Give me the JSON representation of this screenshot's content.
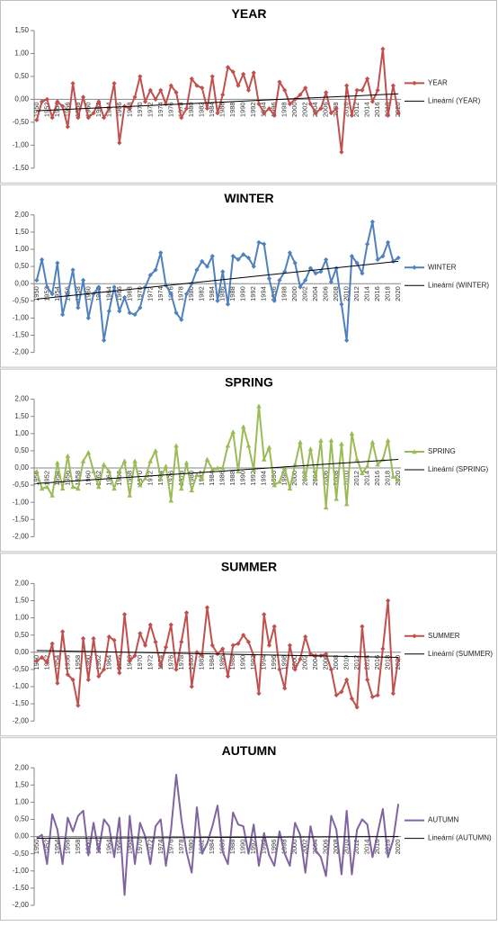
{
  "chart_data": [
    {
      "type": "line",
      "title": "YEAR",
      "marker": "diamond",
      "categories": [
        "1950",
        null,
        "1952",
        null,
        "1954",
        null,
        "1956",
        null,
        "1958",
        null,
        "1960",
        null,
        "1962",
        null,
        "1964",
        null,
        "1966",
        null,
        "1968",
        null,
        "1970",
        null,
        "1972",
        null,
        "1974",
        null,
        "1976",
        null,
        "1978",
        null,
        "1980",
        null,
        "1982",
        null,
        "1984",
        null,
        "1986",
        null,
        "1988",
        null,
        "1990",
        null,
        "1992",
        null,
        "1994",
        null,
        "1996",
        null,
        "1998",
        null,
        "2000",
        null,
        "2002",
        null,
        "2004",
        null,
        "2006",
        null,
        "2008",
        null,
        "2010",
        null,
        "2012",
        null,
        "2014",
        null,
        "2016",
        null,
        "2018",
        null,
        "2020"
      ],
      "series": [
        {
          "name": "YEAR",
          "color": "#c0504d",
          "values": [
            -0.45,
            -0.05,
            0.0,
            -0.4,
            -0.05,
            -0.15,
            -0.6,
            0.35,
            -0.4,
            0.05,
            -0.4,
            -0.3,
            -0.05,
            -0.4,
            -0.2,
            0.35,
            -0.95,
            -0.15,
            -0.2,
            0.05,
            0.5,
            -0.05,
            0.2,
            0.0,
            0.2,
            -0.1,
            0.3,
            0.15,
            -0.4,
            -0.2,
            0.45,
            0.3,
            0.25,
            -0.2,
            0.5,
            -0.3,
            0.1,
            0.7,
            0.6,
            0.3,
            0.55,
            0.2,
            0.58,
            -0.1,
            -0.3,
            -0.2,
            -0.35,
            0.38,
            0.2,
            -0.1,
            0.0,
            0.1,
            0.25,
            -0.1,
            -0.3,
            -0.2,
            0.15,
            -0.3,
            -0.2,
            -1.15,
            0.3,
            -0.35,
            0.2,
            0.2,
            0.45,
            -0.05,
            0.2,
            1.1,
            -0.35,
            0.3,
            -0.3
          ]
        }
      ],
      "trendline": {
        "name": "Lineární (YEAR)",
        "color": "#000000",
        "values": [
          -0.25,
          0.12
        ]
      },
      "ylim": [
        -1.5,
        1.5
      ],
      "yticks": [
        {
          "value": -1.5,
          "label": "-1,50"
        },
        {
          "value": -1.0,
          "label": "-1,00"
        },
        {
          "value": -0.5,
          "label": "-0,50"
        },
        {
          "value": 0,
          "label": "0,00"
        },
        {
          "value": 0.5,
          "label": "0,50"
        },
        {
          "value": 1.0,
          "label": "1,00"
        },
        {
          "value": 1.5,
          "label": "1,50"
        }
      ],
      "grid": false
    },
    {
      "type": "line",
      "title": "WINTER",
      "marker": "diamond",
      "categories": [
        "1950",
        null,
        "1952",
        null,
        "1954",
        null,
        "1956",
        null,
        "1958",
        null,
        "1960",
        null,
        "1962",
        null,
        "1964",
        null,
        "1966",
        null,
        "1968",
        null,
        "1970",
        null,
        "1972",
        null,
        "1974",
        null,
        "1976",
        null,
        "1978",
        null,
        "1980",
        null,
        "1982",
        null,
        "1984",
        null,
        "1986",
        null,
        "1988",
        null,
        "1990",
        null,
        "1992",
        null,
        "1994",
        null,
        "1996",
        null,
        "1998",
        null,
        "2000",
        null,
        "2002",
        null,
        "2004",
        null,
        "2006",
        null,
        "2008",
        null,
        "2010",
        null,
        "2012",
        null,
        "2014",
        null,
        "2016",
        null,
        "2018",
        null,
        "2020"
      ],
      "series": [
        {
          "name": "WINTER",
          "color": "#4f81bd",
          "values": [
            0.1,
            0.7,
            -0.1,
            -0.3,
            0.6,
            -0.9,
            -0.3,
            0.4,
            -0.7,
            0.1,
            -1.0,
            -0.3,
            -0.1,
            -1.65,
            -0.8,
            -0.1,
            -0.8,
            -0.4,
            -0.85,
            -0.9,
            -0.7,
            -0.1,
            0.25,
            0.4,
            0.9,
            -0.05,
            -0.3,
            -0.85,
            -1.05,
            -0.3,
            0.0,
            0.4,
            0.65,
            0.5,
            0.8,
            -0.5,
            0.35,
            -0.6,
            0.8,
            0.7,
            0.85,
            0.75,
            0.5,
            1.2,
            1.15,
            0.15,
            -0.5,
            0.1,
            0.35,
            0.9,
            0.6,
            -0.1,
            0.1,
            0.45,
            0.3,
            0.35,
            0.7,
            0.05,
            0.45,
            -0.6,
            -1.65,
            0.8,
            0.6,
            0.3,
            1.15,
            1.8,
            0.7,
            0.8,
            1.2,
            0.65,
            0.75
          ]
        }
      ],
      "trendline": {
        "name": "Lineární (WINTER)",
        "color": "#000000",
        "values": [
          -0.45,
          0.65
        ]
      },
      "ylim": [
        -2,
        2
      ],
      "yticks": [
        {
          "value": -2,
          "label": "-2,00"
        },
        {
          "value": -1.5,
          "label": "-1,50"
        },
        {
          "value": -1,
          "label": "-1,00"
        },
        {
          "value": -0.5,
          "label": "-0,50"
        },
        {
          "value": 0,
          "label": "0,00"
        },
        {
          "value": 0.5,
          "label": "0,50"
        },
        {
          "value": 1,
          "label": "1,00"
        },
        {
          "value": 1.5,
          "label": "1,50"
        },
        {
          "value": 2,
          "label": "2,00"
        }
      ],
      "grid": false
    },
    {
      "type": "line",
      "title": "SPRING",
      "marker": "triangle",
      "categories": [
        "1950",
        null,
        "1952",
        null,
        "1954",
        null,
        "1956",
        null,
        "1958",
        null,
        "1960",
        null,
        "1962",
        null,
        "1964",
        null,
        "1966",
        null,
        "1968",
        null,
        "1970",
        null,
        "1972",
        null,
        "1974",
        null,
        "1976",
        null,
        "1978",
        null,
        "1980",
        null,
        "1982",
        null,
        "1984",
        null,
        "1986",
        null,
        "1988",
        null,
        "1990",
        null,
        "1992",
        null,
        "1994",
        null,
        "1996",
        null,
        "1998",
        null,
        "2000",
        null,
        "2002",
        null,
        "2004",
        null,
        "2006",
        null,
        "2008",
        null,
        "2010",
        null,
        "2012",
        null,
        "2014",
        null,
        "2016",
        null,
        "2018",
        null,
        "2020"
      ],
      "series": [
        {
          "name": "SPRING",
          "color": "#9bbb59",
          "values": [
            -0.1,
            -0.6,
            -0.55,
            -0.8,
            0.15,
            -0.6,
            0.35,
            -0.55,
            -0.6,
            0.2,
            0.45,
            -0.1,
            -0.55,
            0.1,
            -0.1,
            -0.6,
            -0.1,
            0.2,
            -0.8,
            0.2,
            -0.5,
            -0.3,
            0.2,
            0.5,
            -0.3,
            0.05,
            -0.95,
            0.65,
            -0.6,
            0.15,
            -0.65,
            -0.2,
            -0.3,
            0.25,
            -0.05,
            0.0,
            0.0,
            0.65,
            1.05,
            -0.1,
            1.2,
            0.65,
            -0.05,
            1.8,
            0.25,
            0.6,
            -0.5,
            -0.4,
            0.0,
            -0.6,
            0.1,
            0.75,
            -0.3,
            0.55,
            -0.3,
            0.8,
            -1.15,
            0.8,
            -0.9,
            0.7,
            -1.05,
            1.0,
            0.25,
            -0.15,
            0.05,
            0.75,
            0.1,
            0.25,
            0.8,
            -0.25,
            -0.35
          ]
        }
      ],
      "trendline": {
        "name": "Lineární (SPRING)",
        "color": "#000000",
        "values": [
          -0.45,
          0.25
        ]
      },
      "ylim": [
        -2,
        2
      ],
      "yticks": [
        {
          "value": -2,
          "label": "-2,00"
        },
        {
          "value": -1.5,
          "label": "-1,50"
        },
        {
          "value": -1,
          "label": "-1,00"
        },
        {
          "value": -0.5,
          "label": "-0,50"
        },
        {
          "value": 0,
          "label": "0,00"
        },
        {
          "value": 0.5,
          "label": "0,50"
        },
        {
          "value": 1,
          "label": "1,00"
        },
        {
          "value": 1.5,
          "label": "1,50"
        },
        {
          "value": 2,
          "label": "2,00"
        }
      ],
      "grid": false
    },
    {
      "type": "line",
      "title": "SUMMER",
      "marker": "diamond",
      "categories": [
        "1950",
        null,
        "1952",
        null,
        "1954",
        null,
        "1956",
        null,
        "1958",
        null,
        "1960",
        null,
        "1962",
        null,
        "1964",
        null,
        "1966",
        null,
        "1968",
        null,
        "1970",
        null,
        "1972",
        null,
        "1974",
        null,
        "1976",
        null,
        "1978",
        null,
        "1980",
        null,
        "1982",
        null,
        "1984",
        null,
        "1986",
        null,
        "1988",
        null,
        "1990",
        null,
        "1992",
        null,
        "1994",
        null,
        "1996",
        null,
        "1998",
        null,
        "2000",
        null,
        "2002",
        null,
        "2004",
        null,
        "2006",
        null,
        "2008",
        null,
        "2010",
        null,
        "2012",
        null,
        "2014",
        null,
        "2016",
        null,
        "2018",
        null,
        "2020"
      ],
      "series": [
        {
          "name": "SUMMER",
          "color": "#c0504d",
          "values": [
            -0.25,
            -0.15,
            -0.3,
            0.25,
            -0.9,
            0.6,
            -0.65,
            -0.8,
            -1.55,
            0.4,
            -0.8,
            0.4,
            -0.7,
            -0.5,
            0.45,
            0.35,
            -0.6,
            1.1,
            -0.25,
            -0.1,
            0.55,
            0.2,
            0.8,
            0.3,
            -0.4,
            0.15,
            0.8,
            -0.5,
            0.3,
            1.15,
            -1.0,
            0.0,
            -0.1,
            1.3,
            0.2,
            -0.05,
            0.1,
            -0.7,
            0.2,
            0.25,
            0.5,
            0.3,
            -0.1,
            -1.2,
            1.1,
            0.2,
            0.75,
            -0.5,
            -1.05,
            0.2,
            -0.5,
            -0.2,
            0.45,
            -0.05,
            -0.1,
            -0.1,
            -0.05,
            -0.5,
            -1.25,
            -1.15,
            -0.8,
            -1.35,
            -1.6,
            0.75,
            -0.8,
            -1.3,
            -1.25,
            0.1,
            1.5,
            -1.2,
            -0.2
          ]
        }
      ],
      "trendline": {
        "name": "Lineární (SUMMER)",
        "color": "#000000",
        "values": [
          0.05,
          -0.15
        ]
      },
      "ylim": [
        -2,
        2
      ],
      "yticks": [
        {
          "value": -2,
          "label": "-2,00"
        },
        {
          "value": -1.5,
          "label": "-1,50"
        },
        {
          "value": -1,
          "label": "-1,00"
        },
        {
          "value": -0.5,
          "label": "-0,50"
        },
        {
          "value": 0,
          "label": "0,00"
        },
        {
          "value": 0.5,
          "label": "0,50"
        },
        {
          "value": 1,
          "label": "1,00"
        },
        {
          "value": 1.5,
          "label": "1,50"
        },
        {
          "value": 2,
          "label": "2,00"
        }
      ],
      "grid": false
    },
    {
      "type": "line",
      "title": "AUTUMN",
      "marker": "none",
      "categories": [
        "1950",
        null,
        "1952",
        null,
        "1954",
        null,
        "1956",
        null,
        "1958",
        null,
        "1960",
        null,
        "1962",
        null,
        "1964",
        null,
        "1966",
        null,
        "1968",
        null,
        "1970",
        null,
        "1972",
        null,
        "1974",
        null,
        "1976",
        null,
        "1978",
        null,
        "1980",
        null,
        "1982",
        null,
        "1984",
        null,
        "1986",
        null,
        "1988",
        null,
        "1990",
        null,
        "1992",
        null,
        "1994",
        null,
        "1996",
        null,
        "1998",
        null,
        "2000",
        null,
        "2002",
        null,
        "2004",
        null,
        "2006",
        null,
        "2008",
        null,
        "2010",
        null,
        "2012",
        null,
        "2014",
        null,
        "2016",
        null,
        "2018",
        null,
        "2020"
      ],
      "series": [
        {
          "name": "AUTUMN",
          "color": "#8064a2",
          "values": [
            -0.05,
            0.05,
            -0.8,
            0.65,
            0.2,
            -0.8,
            0.55,
            0.15,
            0.6,
            0.75,
            -0.55,
            0.4,
            -0.45,
            0.5,
            0.3,
            -0.6,
            0.55,
            -1.7,
            0.6,
            -0.8,
            0.4,
            0.0,
            -0.8,
            0.3,
            0.5,
            -0.85,
            0.2,
            1.8,
            0.5,
            -0.45,
            -1.05,
            0.85,
            -0.5,
            -0.2,
            0.3,
            0.9,
            -0.45,
            -0.8,
            0.7,
            0.35,
            0.3,
            -0.5,
            0.35,
            -0.85,
            0.1,
            -0.55,
            -0.85,
            0.15,
            -0.5,
            -0.85,
            0.4,
            0.05,
            -1.05,
            0.3,
            -0.4,
            -0.6,
            -1.15,
            0.6,
            0.2,
            -1.1,
            0.75,
            -1.1,
            0.2,
            0.5,
            0.35,
            -0.6,
            0.1,
            0.8,
            -0.6,
            -0.1,
            0.95
          ]
        }
      ],
      "trendline": {
        "name": "Lineární (AUTUMN)",
        "color": "#000000",
        "values": [
          -0.05,
          0.0
        ]
      },
      "ylim": [
        -2,
        2
      ],
      "yticks": [
        {
          "value": -2,
          "label": "-2,00"
        },
        {
          "value": -1.5,
          "label": "-1,50"
        },
        {
          "value": -1,
          "label": "-1,00"
        },
        {
          "value": -0.5,
          "label": "-0,50"
        },
        {
          "value": 0,
          "label": "0,00"
        },
        {
          "value": 0.5,
          "label": "0,50"
        },
        {
          "value": 1,
          "label": "1,00"
        },
        {
          "value": 1.5,
          "label": "1,50"
        },
        {
          "value": 2,
          "label": "2,00"
        }
      ],
      "grid": false
    }
  ]
}
